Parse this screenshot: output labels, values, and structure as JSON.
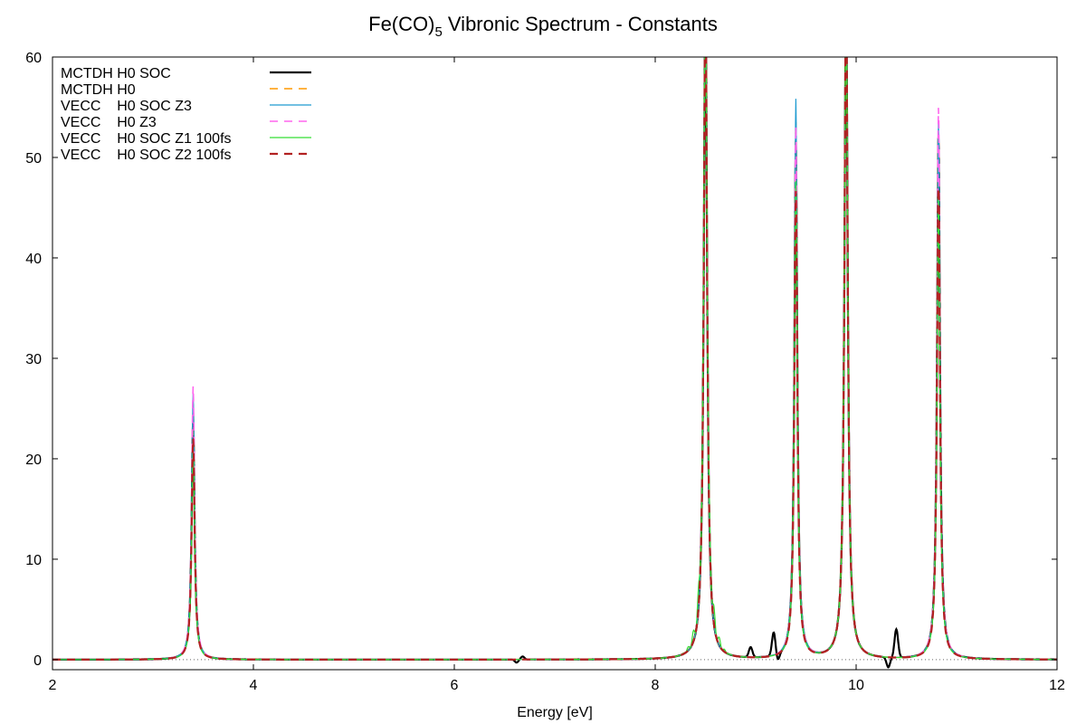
{
  "chart_data": {
    "type": "line",
    "title_main": "Fe(CO)",
    "title_sub": "5",
    "title_rest": " Vibronic Spectrum - Constants",
    "xlabel": "Energy [eV]",
    "ylabel": "",
    "xlim": [
      2,
      12
    ],
    "ylim": [
      -1,
      60
    ],
    "xticks": [
      2,
      4,
      6,
      8,
      10,
      12
    ],
    "yticks": [
      0,
      10,
      20,
      30,
      40,
      50,
      60
    ],
    "grid": false,
    "zero_line": true,
    "legend_position": "top-left",
    "peaks": [
      {
        "center": 3.4,
        "width": 0.018,
        "heights": [
          24.0,
          25.5,
          26.5,
          27.2,
          21.0,
          22.0
        ]
      },
      {
        "center": 8.5,
        "width": 0.02,
        "heights": [
          66.0,
          66.0,
          66.0,
          66.0,
          66.0,
          66.0
        ]
      },
      {
        "center": 9.4,
        "width": 0.018,
        "heights": [
          51.5,
          53.5,
          55.7,
          53.0,
          47.5,
          46.5
        ]
      },
      {
        "center": 9.9,
        "width": 0.02,
        "heights": [
          66.0,
          66.0,
          66.0,
          66.0,
          66.0,
          66.0
        ]
      },
      {
        "center": 10.82,
        "width": 0.018,
        "heights": [
          52.0,
          52.5,
          53.5,
          55.0,
          46.0,
          47.0
        ]
      }
    ],
    "features": [
      {
        "series": 0,
        "x": 6.62,
        "y": -0.3
      },
      {
        "series": 0,
        "x": 6.68,
        "y": 0.3
      },
      {
        "series": 0,
        "x": 8.95,
        "y": 1.0
      },
      {
        "series": 0,
        "x": 9.18,
        "y": 2.3
      },
      {
        "series": 0,
        "x": 9.22,
        "y": -0.7
      },
      {
        "series": 0,
        "x": 10.32,
        "y": -1.0
      },
      {
        "series": 0,
        "x": 10.4,
        "y": 2.8
      }
    ],
    "series": [
      {
        "name": "MCTDH H0 SOC",
        "color": "#000000",
        "dash": "solid",
        "width": 2.2
      },
      {
        "name": "MCTDH H0",
        "color": "#ff9900",
        "dash": "dashed",
        "width": 1.6
      },
      {
        "name": "VECC    H0 SOC Z3",
        "color": "#1f9bd1",
        "dash": "solid",
        "width": 1.2
      },
      {
        "name": "VECC    H0 Z3",
        "color": "#ff66ee",
        "dash": "dashed",
        "width": 1.6
      },
      {
        "name": "VECC    H0 SOC Z1 100fs",
        "color": "#33dd33",
        "dash": "solid",
        "width": 1.2
      },
      {
        "name": "VECC    H0 SOC Z2 100fs",
        "color": "#b22222",
        "dash": "dashed",
        "width": 2.2
      }
    ]
  }
}
